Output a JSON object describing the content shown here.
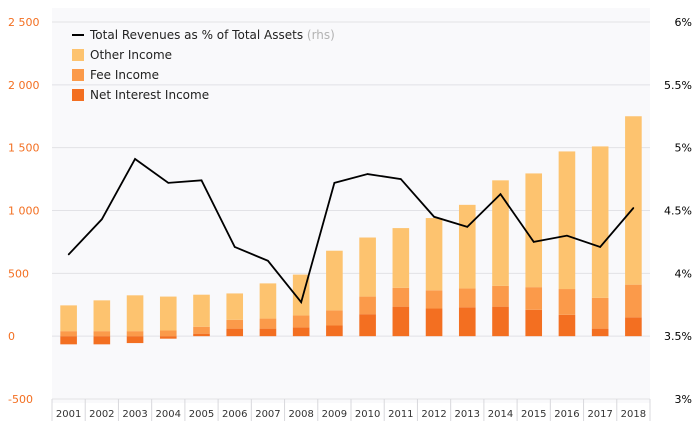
{
  "chart_data": {
    "type": "bar",
    "stacked": true,
    "categories": [
      "2001",
      "2002",
      "2003",
      "2004",
      "2005",
      "2006",
      "2007",
      "2008",
      "2009",
      "2010",
      "2011",
      "2012",
      "2013",
      "2014",
      "2015",
      "2016",
      "2017",
      "2018"
    ],
    "series": [
      {
        "name": "Net Interest Income",
        "color": "#f36f21",
        "values": [
          -65,
          -65,
          -55,
          -20,
          20,
          60,
          60,
          70,
          85,
          175,
          235,
          220,
          230,
          235,
          210,
          170,
          60,
          150
        ]
      },
      {
        "name": "Fee Income",
        "color": "#fb9a4a",
        "values": [
          40,
          40,
          40,
          45,
          55,
          70,
          80,
          95,
          120,
          140,
          150,
          145,
          150,
          165,
          180,
          205,
          245,
          260
        ]
      },
      {
        "name": "Other Income",
        "color": "#fdc36f",
        "values": [
          205,
          245,
          285,
          270,
          255,
          210,
          280,
          325,
          475,
          470,
          475,
          575,
          665,
          840,
          905,
          1095,
          1205,
          1340
        ]
      }
    ],
    "line_series": {
      "name": "Total Revenues as % of Total Assets",
      "name_suffix": "(rhs)",
      "color": "#000000",
      "axis": "right",
      "values": [
        4.15,
        4.43,
        4.91,
        4.72,
        4.74,
        4.21,
        4.1,
        3.77,
        4.72,
        4.79,
        4.75,
        4.45,
        4.37,
        4.63,
        4.25,
        4.3,
        4.21,
        4.52
      ]
    },
    "ylim_left": [
      -500,
      2500
    ],
    "yticks_left": [
      {
        "value": -500,
        "label": "-500"
      },
      {
        "value": 0,
        "label": "0"
      },
      {
        "value": 500,
        "label": "500"
      },
      {
        "value": 1000,
        "label": "1 000"
      },
      {
        "value": 1500,
        "label": "1 500"
      },
      {
        "value": 2000,
        "label": "2 000"
      },
      {
        "value": 2500,
        "label": "2 500"
      }
    ],
    "ylim_right": [
      3,
      6
    ],
    "yticks_right": [
      {
        "value": 3,
        "label": "3%"
      },
      {
        "value": 3.5,
        "label": "3.5%"
      },
      {
        "value": 4,
        "label": "4%"
      },
      {
        "value": 4.5,
        "label": "4.5%"
      },
      {
        "value": 5,
        "label": "5%"
      },
      {
        "value": 5.5,
        "label": "5.5%"
      },
      {
        "value": 6,
        "label": "6%"
      }
    ],
    "left_tick_color": "#f36f21",
    "grid": true,
    "legend_position": "top-left",
    "title": "",
    "xlabel": "",
    "ylabel": ""
  }
}
